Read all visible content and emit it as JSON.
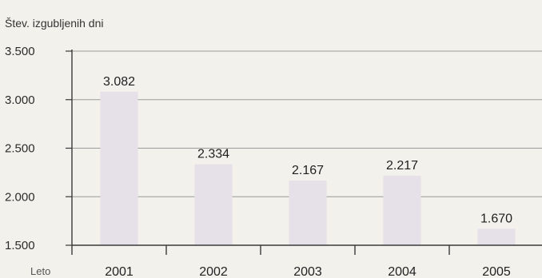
{
  "chart_data": {
    "type": "bar",
    "title": "",
    "ylabel": "Štev. izgubljenih dni",
    "xlabel": "Leto",
    "categories": [
      "2001",
      "2002",
      "2003",
      "2004",
      "2005"
    ],
    "values": [
      3082,
      2334,
      2167,
      2217,
      1670
    ],
    "value_labels": [
      "3.082",
      "2.334",
      "2.167",
      "2.217",
      "1.670"
    ],
    "ylim": [
      1500,
      3500
    ],
    "yticks": [
      1500,
      2000,
      2500,
      3000,
      3500
    ],
    "ytick_labels": [
      "1.500",
      "2.000",
      "2.500",
      "3.000",
      "3.500"
    ],
    "grid": true,
    "colors": {
      "background": "#f3f1ec",
      "bar": "#e6e0e8",
      "gridline": "#9a9a9a",
      "axis": "#3a3a3a"
    }
  }
}
